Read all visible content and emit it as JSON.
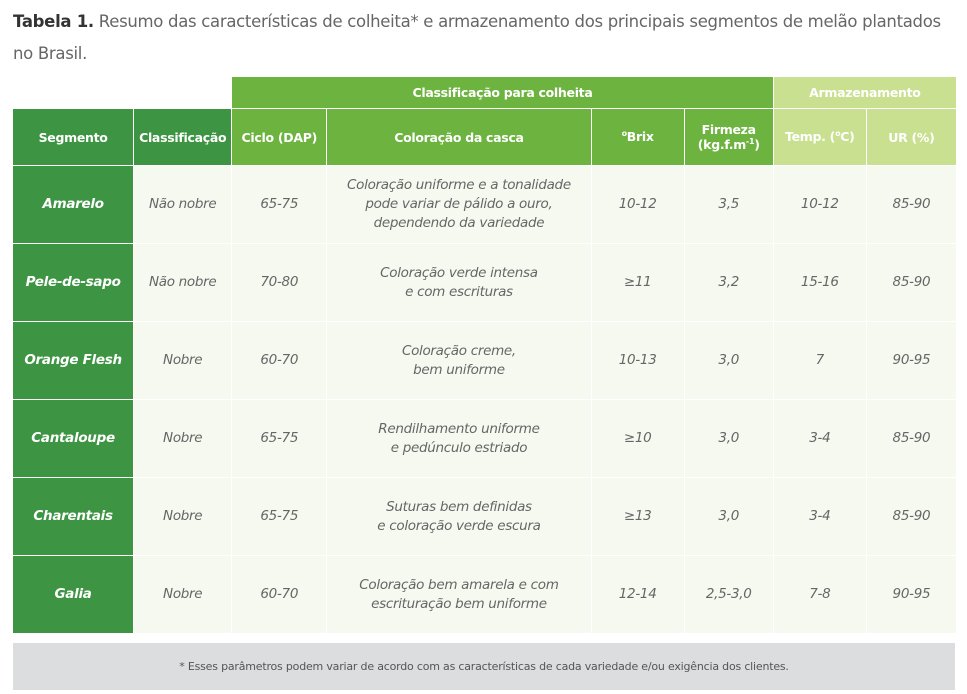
{
  "caption": {
    "label": "Tabela 1.",
    "text": " Resumo das características de colheita* e armazenamento dos principais segmentos de melão plantados no Brasil."
  },
  "groups": {
    "harvest": "Classificação para colheita",
    "storage": "Armazenamento"
  },
  "headers": {
    "segmento": "Segmento",
    "classificacao": "Classificação",
    "ciclo": "Ciclo (DAP)",
    "coloracao": "Coloração da casca",
    "brix_sup": "o",
    "brix": "Brix",
    "firmeza": "Firmeza",
    "firmeza_unit": "(kg.f.m",
    "firmeza_sup": "-1",
    "firmeza_close": ")",
    "temp": "Temp. (",
    "temp_sup": "o",
    "temp_close": "C)",
    "ur": "UR (%)"
  },
  "rows": [
    {
      "segmento": "Amarelo",
      "classificacao": "Não nobre",
      "ciclo": "65-75",
      "coloracao": [
        "Coloração uniforme e a tonalidade",
        "pode variar de pálido a ouro,",
        "dependendo da variedade"
      ],
      "brix": "10-12",
      "firmeza": "3,5",
      "temp": "10-12",
      "ur": "85-90"
    },
    {
      "segmento": "Pele-de-sapo",
      "classificacao": "Não nobre",
      "ciclo": "70-80",
      "coloracao": [
        "Coloração verde intensa",
        "e com escrituras",
        ""
      ],
      "brix": "≥11",
      "firmeza": "3,2",
      "temp": "15-16",
      "ur": "85-90"
    },
    {
      "segmento": "Orange Flesh",
      "classificacao": "Nobre",
      "ciclo": "60-70",
      "coloracao": [
        "Coloração creme,",
        "bem uniforme",
        ""
      ],
      "brix": "10-13",
      "firmeza": "3,0",
      "temp": "7",
      "ur": "90-95"
    },
    {
      "segmento": "Cantaloupe",
      "classificacao": "Nobre",
      "ciclo": "65-75",
      "coloracao": [
        "Rendilhamento uniforme",
        "e pedúnculo estriado",
        ""
      ],
      "brix": "≥10",
      "firmeza": "3,0",
      "temp": "3-4",
      "ur": "85-90"
    },
    {
      "segmento": "Charentais",
      "classificacao": "Nobre",
      "ciclo": "65-75",
      "coloracao": [
        "Suturas bem definidas",
        "e coloração verde escura",
        ""
      ],
      "brix": "≥13",
      "firmeza": "3,0",
      "temp": "3-4",
      "ur": "85-90"
    },
    {
      "segmento": "Galia",
      "classificacao": "Nobre",
      "ciclo": "60-70",
      "coloracao": [
        "Coloração bem amarela e com",
        "escrituração bem uniforme",
        ""
      ],
      "brix": "12-14",
      "firmeza": "2,5-3,0",
      "temp": "7-8",
      "ur": "90-95"
    }
  ],
  "footer": "* Esses parâmetros podem variar de acordo com as características de cada variedade e/ou exigência dos clientes."
}
